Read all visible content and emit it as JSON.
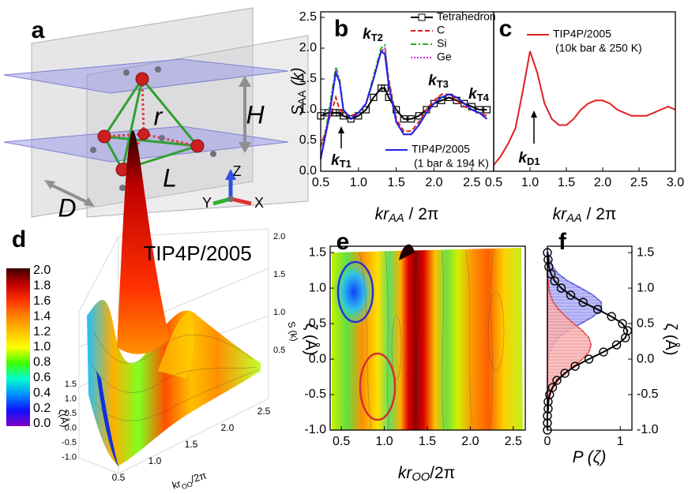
{
  "panel_labels": [
    "a",
    "b",
    "c",
    "d",
    "e",
    "f"
  ],
  "panel_a": {
    "texts": [
      "r",
      "H",
      "L",
      "D"
    ],
    "axes": [
      "Z",
      "Y",
      "X"
    ]
  },
  "panel_d": {
    "title": "TIP4P/2005",
    "colorbar_ticks": [
      "2.0",
      "1.8",
      "1.6",
      "1.4",
      "1.2",
      "1.0",
      "0.8",
      "0.6",
      "0.4",
      "0.2",
      "0.0"
    ],
    "zeta_ticks": [
      "1.5",
      "1.0",
      "0.5",
      "0.0",
      "-0.5",
      "-1.0"
    ],
    "x_ticks": [
      "0.5",
      "1.0",
      "1.5",
      "2.0",
      "2.5"
    ],
    "s_ticks": [
      "2.0",
      "1.5",
      "1.0",
      "0.5"
    ],
    "xlabel": [
      {
        "text": "kr"
      },
      {
        "text": "OO",
        "sub": true
      },
      {
        "text": "/2π"
      }
    ],
    "ylabel": "ζ(Å)",
    "zlabel": "S (k)"
  },
  "chart_data": [
    {
      "type": "line",
      "x": [
        0.5,
        0.6,
        0.7,
        0.75,
        0.8,
        0.9,
        1.0,
        1.1,
        1.2,
        1.3,
        1.35,
        1.4,
        1.5,
        1.6,
        1.7,
        1.8,
        1.9,
        2.0,
        2.1,
        2.2,
        2.3,
        2.4,
        2.5,
        2.6,
        2.7
      ],
      "series": [
        {
          "name": "Tetrahedron",
          "color": "#000000",
          "dash": "solid",
          "marker": "square",
          "values": [
            0.9,
            0.95,
            0.95,
            0.95,
            0.9,
            0.85,
            0.9,
            1.0,
            1.2,
            1.35,
            1.35,
            1.2,
            1.0,
            0.85,
            0.85,
            0.9,
            1.0,
            1.1,
            1.15,
            1.2,
            1.15,
            1.1,
            1.05,
            1.0,
            1.0
          ]
        },
        {
          "name": "C",
          "color": "#e02020",
          "dash": "dashed",
          "values": [
            0.4,
            0.8,
            1.2,
            1.0,
            0.95,
            0.9,
            0.95,
            1.1,
            1.5,
            1.95,
            1.95,
            1.5,
            0.85,
            0.65,
            0.65,
            0.8,
            1.0,
            1.15,
            1.25,
            1.25,
            1.15,
            1.05,
            1.0,
            0.95,
            0.9
          ]
        },
        {
          "name": "Si",
          "color": "#20b020",
          "dash": "dashdot",
          "values": [
            0.2,
            0.9,
            1.7,
            1.5,
            1.0,
            0.85,
            0.95,
            1.1,
            1.55,
            2.0,
            2.05,
            1.45,
            0.8,
            0.6,
            0.6,
            0.75,
            0.95,
            1.1,
            1.2,
            1.25,
            1.2,
            1.1,
            1.0,
            0.95,
            0.85
          ]
        },
        {
          "name": "Ge",
          "color": "#e020e0",
          "dash": "dotted",
          "values": [
            0.2,
            0.85,
            1.65,
            1.45,
            1.0,
            0.85,
            0.95,
            1.1,
            1.5,
            1.95,
            2.0,
            1.45,
            0.8,
            0.6,
            0.6,
            0.75,
            0.95,
            1.1,
            1.2,
            1.25,
            1.2,
            1.1,
            1.0,
            0.95,
            0.85
          ]
        },
        {
          "name": "TIP4P/2005",
          "color": "#2020e0",
          "dash": "solid",
          "legend_note": "(1 bar & 194 K)",
          "values": [
            0.2,
            0.8,
            1.6,
            1.45,
            1.0,
            0.85,
            0.95,
            1.1,
            1.5,
            1.95,
            1.9,
            1.4,
            0.8,
            0.6,
            0.6,
            0.75,
            0.95,
            1.1,
            1.2,
            1.25,
            1.2,
            1.1,
            1.0,
            0.95,
            0.85
          ]
        }
      ],
      "annotations": [
        {
          "text": "k",
          "sub": "T1",
          "color": "#2020e0"
        },
        {
          "text": "k",
          "sub": "T2",
          "color": "#000000"
        },
        {
          "text": "k",
          "sub": "T3",
          "color": "#000000"
        },
        {
          "text": "k",
          "sub": "T4",
          "color": "#000000"
        }
      ],
      "xlim": [
        0.5,
        2.79
      ],
      "ylim": [
        0,
        2.59
      ],
      "xticks": [
        0.5,
        {
          "value": 1,
          "label": "1.0"
        },
        1.5,
        {
          "value": 2,
          "label": "2.0"
        },
        2.5
      ],
      "yticks": [
        {
          "value": 0,
          "label": "0.0"
        },
        0.5,
        {
          "value": 1,
          "label": "1.0"
        },
        1.5,
        {
          "value": 2,
          "label": "2.0"
        },
        2.5
      ],
      "xlabel": [
        {
          "text": "kr",
          "italic": true
        },
        {
          "text": "AA",
          "sub": true,
          "italic": true
        },
        {
          "text": " / 2π"
        }
      ],
      "ylabel": [
        {
          "text": "S",
          "italic": true
        },
        {
          "text": "AA",
          "sub": true
        },
        {
          "text": " (k)",
          "italic": true
        }
      ],
      "legend": "upper right"
    },
    {
      "type": "line",
      "x": [
        0.5,
        0.6,
        0.7,
        0.8,
        0.9,
        1.0,
        1.1,
        1.2,
        1.3,
        1.4,
        1.5,
        1.6,
        1.7,
        1.8,
        1.9,
        2.0,
        2.1,
        2.2,
        2.3,
        2.4,
        2.5,
        2.6,
        2.7,
        2.8,
        2.9,
        3.0
      ],
      "series": [
        {
          "name": "TIP4P/2005",
          "color": "#e02020",
          "dash": "solid",
          "legend_note": "(10k bar & 250 K)",
          "values": [
            0.1,
            0.25,
            0.45,
            0.7,
            1.3,
            1.95,
            1.6,
            1.1,
            0.85,
            0.75,
            0.75,
            0.85,
            1.0,
            1.1,
            1.15,
            1.15,
            1.1,
            1.0,
            0.95,
            0.9,
            0.9,
            0.9,
            0.95,
            1.0,
            1.05,
            1.0
          ]
        }
      ],
      "annotations": [
        {
          "text": "k",
          "sub": "D1",
          "color": "#e02020"
        }
      ],
      "xlim": [
        0.5,
        3.0
      ],
      "ylim": [
        0,
        2.59
      ],
      "xticks": [
        0.5,
        {
          "value": 1,
          "label": "1.0"
        },
        1.5,
        {
          "value": 2,
          "label": "2.0"
        },
        2.5,
        {
          "value": 3,
          "label": "3.0"
        }
      ],
      "xlabel": [
        {
          "text": "kr",
          "italic": true
        },
        {
          "text": "AA",
          "sub": true,
          "italic": true
        },
        {
          "text": " / 2π"
        }
      ]
    },
    {
      "type": "contour",
      "xlim": [
        0.37,
        2.64
      ],
      "ylim": [
        -1.0,
        1.59
      ],
      "xticks": [
        0.5,
        {
          "value": 1,
          "label": "1.0"
        },
        1.5,
        {
          "value": 2,
          "label": "2.0"
        },
        2.5
      ],
      "yticks": [
        {
          "value": -1,
          "label": "-1.0"
        },
        -0.5,
        {
          "value": 0,
          "label": "0.0"
        },
        0.5,
        {
          "value": 1,
          "label": "1.0"
        },
        1.5
      ],
      "xlabel": [
        {
          "text": "kr",
          "italic": true
        },
        {
          "text": "OO",
          "sub": true,
          "italic": true
        },
        {
          "text": "/2π"
        }
      ],
      "ylabel": [
        {
          "text": "ζ (Å)"
        }
      ]
    },
    {
      "type": "area",
      "orientation": "horizontal",
      "y": [
        -1.0,
        -0.9,
        -0.8,
        -0.7,
        -0.6,
        -0.5,
        -0.4,
        -0.3,
        -0.2,
        -0.1,
        0.0,
        0.1,
        0.2,
        0.3,
        0.4,
        0.5,
        0.6,
        0.7,
        0.8,
        0.9,
        1.0,
        1.1,
        1.2,
        1.3,
        1.4,
        1.5
      ],
      "series": [
        {
          "color": "#5050e0",
          "fill": "#9a9af0",
          "values": [
            0,
            0,
            0,
            0,
            0,
            0,
            0,
            0,
            0,
            0,
            0.01,
            0.03,
            0.07,
            0.15,
            0.28,
            0.46,
            0.63,
            0.74,
            0.74,
            0.63,
            0.46,
            0.28,
            0.15,
            0.07,
            0.03,
            0.01
          ]
        },
        {
          "color": "#e04040",
          "fill": "#f4a0a0",
          "values": [
            0,
            0,
            0,
            0.01,
            0.02,
            0.04,
            0.08,
            0.15,
            0.25,
            0.36,
            0.48,
            0.57,
            0.6,
            0.57,
            0.48,
            0.36,
            0.25,
            0.15,
            0.08,
            0.04,
            0.02,
            0.01,
            0,
            0,
            0,
            0
          ]
        },
        {
          "color": "#000000",
          "marker": "circle",
          "values": [
            0,
            0,
            0,
            0.01,
            0.01,
            0.03,
            0.07,
            0.13,
            0.24,
            0.38,
            0.57,
            0.77,
            0.95,
            1.07,
            1.1,
            1.03,
            0.88,
            0.69,
            0.49,
            0.32,
            0.19,
            0.1,
            0.05,
            0.02,
            0.01,
            0
          ]
        }
      ],
      "xlim": [
        0,
        1.16
      ],
      "ylim": [
        -1.0,
        1.59
      ],
      "xticks": [
        0,
        1
      ],
      "yticks": [
        {
          "value": -1,
          "label": "-1.0"
        },
        -0.5,
        {
          "value": 0,
          "label": "0.0"
        },
        0.5,
        {
          "value": 1,
          "label": "1.0"
        },
        1.5
      ],
      "yaxis_side": "right",
      "xlabel": [
        {
          "text": "P (ζ)",
          "italic": true
        }
      ],
      "ylabel": [
        {
          "text": "ζ (Å)"
        }
      ]
    }
  ]
}
